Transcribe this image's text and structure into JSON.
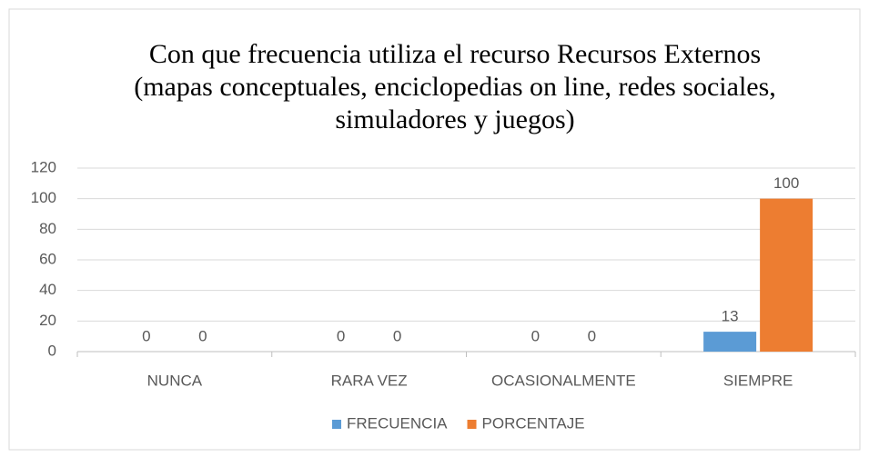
{
  "chart_data": {
    "type": "bar",
    "title": "Con que frecuencia utiliza el recurso Recursos Externos (mapas conceptuales, enciclopedias on line, redes sociales, simuladores y juegos)",
    "categories": [
      "NUNCA",
      "RARA VEZ",
      "OCASIONALMENTE",
      "SIEMPRE"
    ],
    "series": [
      {
        "name": "FRECUENCIA",
        "color": "#5b9bd5",
        "values": [
          0,
          0,
          0,
          13
        ]
      },
      {
        "name": "PORCENTAJE",
        "color": "#ed7d31",
        "values": [
          0,
          0,
          0,
          100
        ]
      }
    ],
    "ylim": [
      0,
      120
    ],
    "yticks": [
      0,
      20,
      40,
      60,
      80,
      100,
      120
    ],
    "grid": true,
    "legend": "bottom"
  }
}
